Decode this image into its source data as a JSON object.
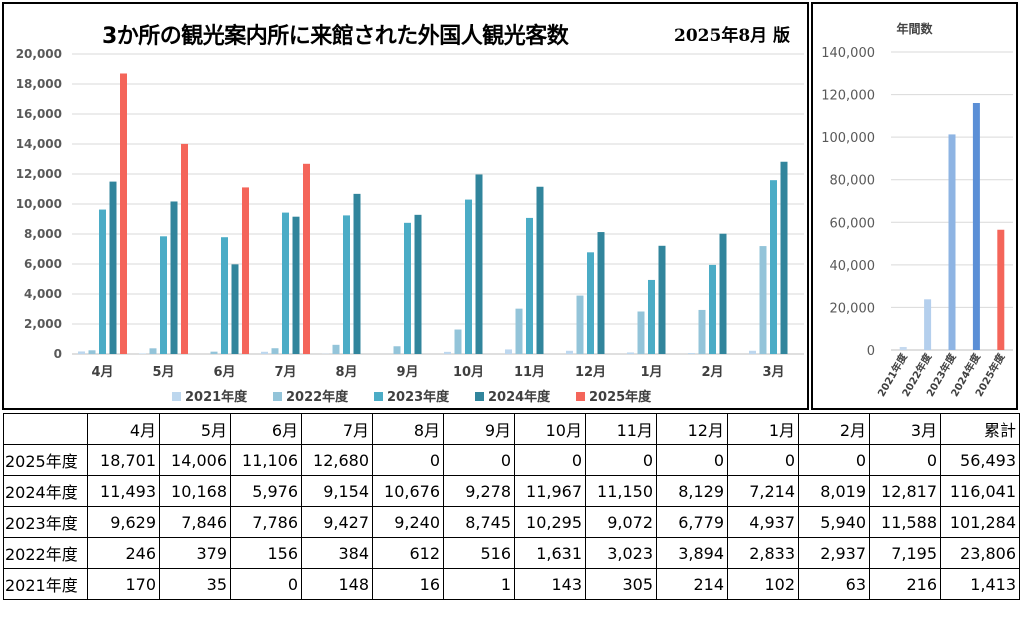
{
  "title": "3か所の観光案内所に来館された外国人観光客数",
  "version": "2025年8月 版",
  "colors": {
    "2021年度": "#bdd7ee",
    "2022年度": "#93c4d9",
    "2023年度": "#4bacc6",
    "2024年度": "#31859c",
    "2025年度": "#f4655a"
  },
  "chart_data": [
    {
      "type": "bar",
      "categories": [
        "4月",
        "5月",
        "6月",
        "7月",
        "8月",
        "9月",
        "10月",
        "11月",
        "12月",
        "1月",
        "2月",
        "3月"
      ],
      "series": [
        {
          "name": "2021年度",
          "values": [
            170,
            35,
            0,
            148,
            16,
            1,
            143,
            305,
            214,
            102,
            63,
            216
          ]
        },
        {
          "name": "2022年度",
          "values": [
            246,
            379,
            156,
            384,
            612,
            516,
            1631,
            3023,
            3894,
            2833,
            2937,
            7195
          ]
        },
        {
          "name": "2023年度",
          "values": [
            9629,
            7846,
            7786,
            9427,
            9240,
            8745,
            10295,
            9072,
            6779,
            4937,
            5940,
            11588
          ]
        },
        {
          "name": "2024年度",
          "values": [
            11493,
            10168,
            5976,
            9154,
            10676,
            9278,
            11967,
            11150,
            8129,
            7214,
            8019,
            12817
          ]
        },
        {
          "name": "2025年度",
          "values": [
            18701,
            14006,
            11106,
            12680,
            0,
            0,
            0,
            0,
            0,
            0,
            0,
            0
          ]
        }
      ],
      "yticks": [
        "0",
        "2,000",
        "4,000",
        "6,000",
        "8,000",
        "10,000",
        "12,000",
        "14,000",
        "16,000",
        "18,000",
        "20,000"
      ],
      "ylim": [
        0,
        20000
      ],
      "grid": true,
      "legend": "bottom"
    },
    {
      "type": "bar",
      "title": "年間数",
      "categories": [
        "2021年度",
        "2022年度",
        "2023年度",
        "2024年度",
        "2025年度"
      ],
      "values": [
        1413,
        23806,
        101284,
        116041,
        56493
      ],
      "colors": [
        "#c5d9ef",
        "#b4cfed",
        "#8eb4e3",
        "#5b8fd6",
        "#f4655a"
      ],
      "yticks": [
        "0",
        "20,000",
        "40,000",
        "60,000",
        "80,000",
        "100,000",
        "120,000",
        "140,000"
      ],
      "ylim": [
        0,
        140000
      ],
      "grid": true
    }
  ],
  "table": {
    "header": [
      "",
      "4月",
      "5月",
      "6月",
      "7月",
      "8月",
      "9月",
      "10月",
      "11月",
      "12月",
      "1月",
      "2月",
      "3月",
      "累計"
    ],
    "rows": [
      [
        "2025年度",
        "18,701",
        "14,006",
        "11,106",
        "12,680",
        "0",
        "0",
        "0",
        "0",
        "0",
        "0",
        "0",
        "0",
        "56,493"
      ],
      [
        "2024年度",
        "11,493",
        "10,168",
        "5,976",
        "9,154",
        "10,676",
        "9,278",
        "11,967",
        "11,150",
        "8,129",
        "7,214",
        "8,019",
        "12,817",
        "116,041"
      ],
      [
        "2023年度",
        "9,629",
        "7,846",
        "7,786",
        "9,427",
        "9,240",
        "8,745",
        "10,295",
        "9,072",
        "6,779",
        "4,937",
        "5,940",
        "11,588",
        "101,284"
      ],
      [
        "2022年度",
        "246",
        "379",
        "156",
        "384",
        "612",
        "516",
        "1,631",
        "3,023",
        "3,894",
        "2,833",
        "2,937",
        "7,195",
        "23,806"
      ],
      [
        "2021年度",
        "170",
        "35",
        "0",
        "148",
        "16",
        "1",
        "143",
        "305",
        "214",
        "102",
        "63",
        "216",
        "1,413"
      ]
    ]
  }
}
